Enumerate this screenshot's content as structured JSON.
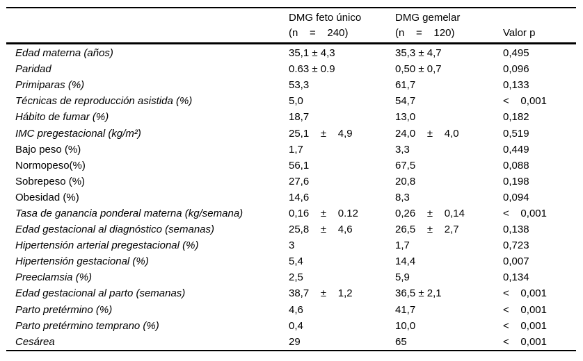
{
  "colors": {
    "background": "#ffffff",
    "text": "#000000",
    "rule": "#000000"
  },
  "table": {
    "header": {
      "group_single_line1": "DMG feto único",
      "group_single_line2": "(n    =    240)",
      "group_twin_line1": "DMG gemelar",
      "group_twin_line2": "(n    =    120)",
      "p_label": "Valor p"
    },
    "rows": [
      {
        "label": "Edad materna (años)",
        "italic": true,
        "single": "35,1 ± 4,3",
        "twin": "35,3 ± 4,7",
        "p": "0,495"
      },
      {
        "label": "Paridad",
        "italic": true,
        "single": "0.63 ± 0.9",
        "twin": "0,50 ± 0,7",
        "p": "0,096"
      },
      {
        "label": "Primiparas (%)",
        "italic": true,
        "single": "53,3",
        "twin": "61,7",
        "p": "0,133"
      },
      {
        "label": "Técnicas de reproducción asistida (%)",
        "italic": true,
        "single": "5,0",
        "twin": "54,7",
        "p": "<    0,001"
      },
      {
        "label": "Hábito de fumar (%)",
        "italic": true,
        "single": "18,7",
        "twin": "13,0",
        "p": "0,182"
      },
      {
        "label": "IMC pregestacional (kg/m²)",
        "italic": true,
        "single": "25,1    ±    4,9",
        "twin": "24,0    ±    4,0",
        "p": "0,519"
      },
      {
        "label": "Bajo peso (%)",
        "italic": false,
        "single": "1,7",
        "twin": "3,3",
        "p": "0,449"
      },
      {
        "label": "Normopeso(%)",
        "italic": false,
        "single": "56,1",
        "twin": "67,5",
        "p": "0,088"
      },
      {
        "label": "Sobrepeso (%)",
        "italic": false,
        "single": "27,6",
        "twin": "20,8",
        "p": "0,198"
      },
      {
        "label": "Obesidad (%)",
        "italic": false,
        "single": "14,6",
        "twin": "8,3",
        "p": "0,094"
      },
      {
        "label": "Tasa de ganancia ponderal materna (kg/semana)",
        "italic": true,
        "single": "0,16    ±    0.12",
        "twin": "0,26    ±    0,14",
        "p": "<    0,001"
      },
      {
        "label": "Edad gestacional al diagnóstico (semanas)",
        "italic": true,
        "single": "25,8    ±    4,6",
        "twin": "26,5    ±    2,7",
        "p": "0,138"
      },
      {
        "label": "Hipertensión arterial pregestacional (%)",
        "italic": true,
        "single": "3",
        "twin": "1,7",
        "p": "0,723"
      },
      {
        "label": "Hipertensión gestacional (%)",
        "italic": true,
        "single": "5,4",
        "twin": "14,4",
        "p": "0,007"
      },
      {
        "label": "Preeclamsia (%)",
        "italic": true,
        "single": "2,5",
        "twin": "5,9",
        "p": "0,134"
      },
      {
        "label": "Edad gestacional al parto (semanas)",
        "italic": true,
        "single": "38,7    ±    1,2",
        "twin": "36,5 ± 2,1",
        "p": "<    0,001"
      },
      {
        "label": "Parto pretérmino (%)",
        "italic": true,
        "single": "4,6",
        "twin": "41,7",
        "p": "<    0,001"
      },
      {
        "label": "Parto pretérmino temprano (%)",
        "italic": true,
        "single": "0,4",
        "twin": "10,0",
        "p": "<    0,001"
      },
      {
        "label": "Cesárea",
        "italic": true,
        "single": "29",
        "twin": "65",
        "p": "<    0,001"
      }
    ]
  }
}
